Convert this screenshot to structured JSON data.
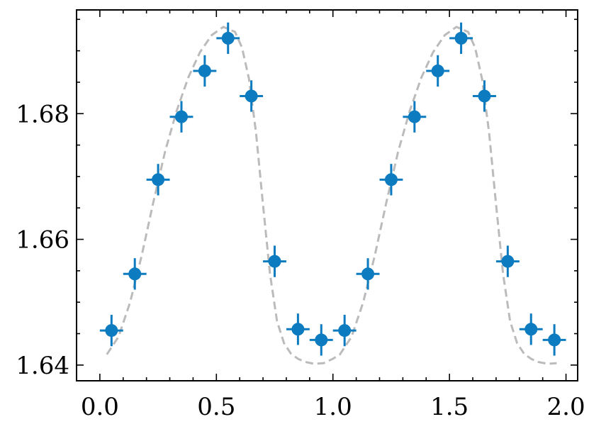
{
  "chart_data": {
    "type": "scatter",
    "title": "",
    "xlabel": "",
    "ylabel": "",
    "xlim": [
      -0.1,
      2.05
    ],
    "ylim": [
      1.6375,
      1.6965
    ],
    "x_ticks": [
      0.0,
      0.5,
      1.0,
      1.5,
      2.0
    ],
    "x_tick_labels": [
      "0.0",
      "0.5",
      "1.0",
      "1.5",
      "2.0"
    ],
    "y_ticks": [
      1.64,
      1.66,
      1.68
    ],
    "y_tick_labels": [
      "1.64",
      "1.66",
      "1.68"
    ],
    "x_minor_step": 0.1,
    "y_minor_step": 0.005,
    "grid": false,
    "series": [
      {
        "kind": "errorbar",
        "color": "#0C7BBF",
        "x": [
          0.05,
          0.15,
          0.25,
          0.35,
          0.45,
          0.55,
          0.65,
          0.75,
          0.85,
          0.95,
          1.05,
          1.15,
          1.25,
          1.35,
          1.45,
          1.55,
          1.65,
          1.75,
          1.85,
          1.95
        ],
        "y": [
          1.6455,
          1.6545,
          1.6695,
          1.6795,
          1.6868,
          1.692,
          1.6828,
          1.6565,
          1.6457,
          1.644,
          1.6455,
          1.6545,
          1.6695,
          1.6795,
          1.6868,
          1.692,
          1.6828,
          1.6565,
          1.6457,
          1.644
        ],
        "x_err": 0.05,
        "y_err": 0.0025
      },
      {
        "kind": "model",
        "color": "#BBBBBB",
        "x": [
          0.03,
          0.08,
          0.13,
          0.18,
          0.23,
          0.28,
          0.33,
          0.38,
          0.43,
          0.48,
          0.53,
          0.58,
          0.61,
          0.64,
          0.67,
          0.7,
          0.73,
          0.76,
          0.79,
          0.82,
          0.85,
          0.88,
          0.92,
          0.96,
          1.0,
          1.03,
          1.08,
          1.13,
          1.18,
          1.23,
          1.28,
          1.33,
          1.38,
          1.43,
          1.48,
          1.53,
          1.58,
          1.61,
          1.64,
          1.67,
          1.7,
          1.73,
          1.76,
          1.79,
          1.82,
          1.85,
          1.88,
          1.92,
          1.96
        ],
        "y": [
          1.6417,
          1.6445,
          1.65,
          1.6575,
          1.666,
          1.674,
          1.6805,
          1.6858,
          1.6898,
          1.6925,
          1.6938,
          1.693,
          1.6905,
          1.6855,
          1.677,
          1.6655,
          1.6545,
          1.647,
          1.6435,
          1.6418,
          1.641,
          1.6405,
          1.6402,
          1.6403,
          1.641,
          1.6417,
          1.6445,
          1.65,
          1.6575,
          1.666,
          1.674,
          1.6805,
          1.6858,
          1.6898,
          1.6925,
          1.6938,
          1.693,
          1.6905,
          1.6855,
          1.677,
          1.6655,
          1.6545,
          1.647,
          1.6435,
          1.6418,
          1.641,
          1.6405,
          1.6402,
          1.6403
        ]
      }
    ]
  }
}
